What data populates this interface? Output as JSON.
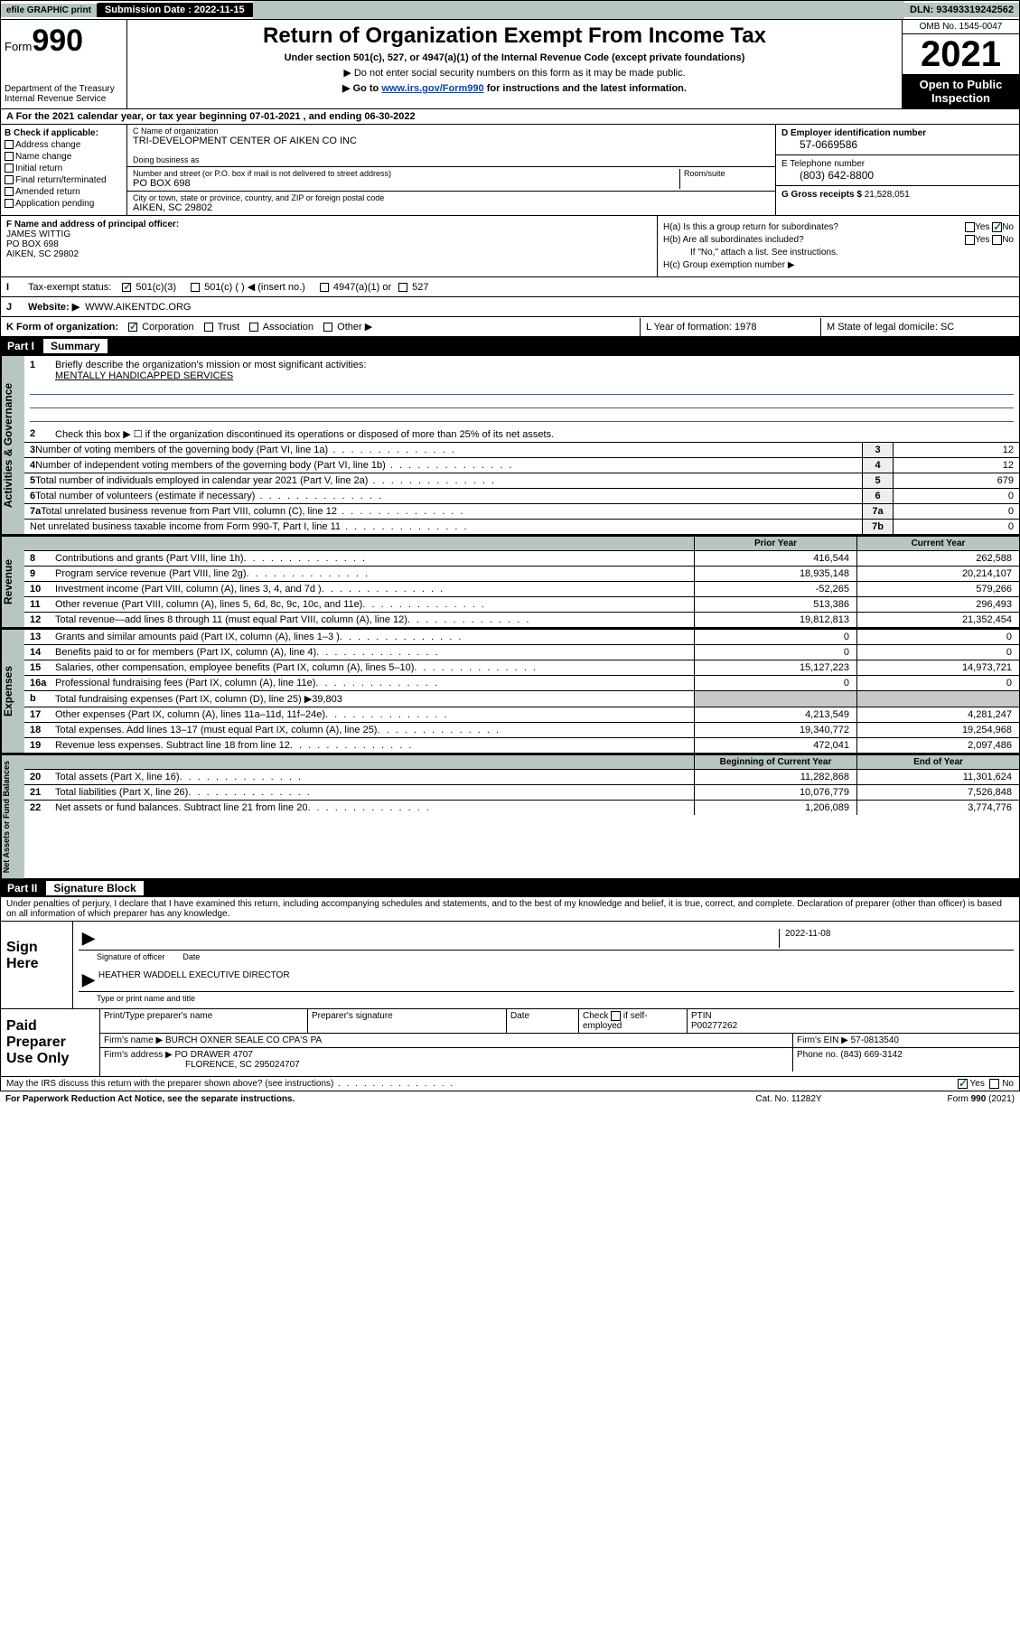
{
  "topbar": {
    "efile": "efile GRAPHIC print",
    "submission": "Submission Date : 2022-11-15",
    "dln": "DLN: 93493319242562"
  },
  "header": {
    "form_word": "Form",
    "form_num": "990",
    "dept": "Department of the Treasury",
    "irs": "Internal Revenue Service",
    "title": "Return of Organization Exempt From Income Tax",
    "subtitle": "Under section 501(c), 527, or 4947(a)(1) of the Internal Revenue Code (except private foundations)",
    "note1": "▶ Do not enter social security numbers on this form as it may be made public.",
    "note2_pre": "▶ Go to ",
    "note2_link": "www.irs.gov/Form990",
    "note2_post": " for instructions and the latest information.",
    "omb": "OMB No. 1545-0047",
    "year": "2021",
    "open": "Open to Public Inspection"
  },
  "rowA": "A For the 2021 calendar year, or tax year beginning 07-01-2021   , and ending 06-30-2022",
  "sectionB": {
    "label": "B Check if applicable:",
    "opts": [
      "Address change",
      "Name change",
      "Initial return",
      "Final return/terminated",
      "Amended return",
      "Application pending"
    ],
    "c_label": "C Name of organization",
    "c_name": "TRI-DEVELOPMENT CENTER OF AIKEN CO INC",
    "dba_label": "Doing business as",
    "addr_label": "Number and street (or P.O. box if mail is not delivered to street address)",
    "room_label": "Room/suite",
    "addr": "PO BOX 698",
    "city_label": "City or town, state or province, country, and ZIP or foreign postal code",
    "city": "AIKEN, SC  29802",
    "d_label": "D Employer identification number",
    "d_val": "57-0669586",
    "e_label": "E Telephone number",
    "e_val": "(803) 642-8800",
    "g_label": "G Gross receipts $",
    "g_val": "21,528,051"
  },
  "sectionFH": {
    "f_label": "F Name and address of principal officer:",
    "f_name": "JAMES WITTIG",
    "f_addr1": "PO BOX 698",
    "f_addr2": "AIKEN, SC  29802",
    "ha": "H(a)  Is this a group return for subordinates?",
    "hb": "H(b)  Are all subordinates included?",
    "hb_note": "If \"No,\" attach a list. See instructions.",
    "hc": "H(c)  Group exemption number ▶",
    "yes": "Yes",
    "no": "No"
  },
  "rowI": {
    "label": "Tax-exempt status:",
    "o1": "501(c)(3)",
    "o2": "501(c) (  ) ◀ (insert no.)",
    "o3": "4947(a)(1) or",
    "o4": "527"
  },
  "rowJ": {
    "label": "Website: ▶",
    "val": "WWW.AIKENTDC.ORG"
  },
  "rowK": {
    "label": "K Form of organization:",
    "o1": "Corporation",
    "o2": "Trust",
    "o3": "Association",
    "o4": "Other ▶",
    "l": "L Year of formation: 1978",
    "m": "M State of legal domicile: SC"
  },
  "part1": {
    "num": "Part I",
    "title": "Summary"
  },
  "governance": {
    "tab": "Activities & Governance",
    "q1_label": "1",
    "q1_text": "Briefly describe the organization's mission or most significant activities:",
    "q1_val": "MENTALLY HANDICAPPED SERVICES",
    "q2_label": "2",
    "q2_text": "Check this box ▶ ☐  if the organization discontinued its operations or disposed of more than 25% of its net assets.",
    "rows": [
      {
        "n": "3",
        "t": "Number of voting members of the governing body (Part VI, line 1a)",
        "box": "3",
        "v": "12"
      },
      {
        "n": "4",
        "t": "Number of independent voting members of the governing body (Part VI, line 1b)",
        "box": "4",
        "v": "12"
      },
      {
        "n": "5",
        "t": "Total number of individuals employed in calendar year 2021 (Part V, line 2a)",
        "box": "5",
        "v": "679"
      },
      {
        "n": "6",
        "t": "Total number of volunteers (estimate if necessary)",
        "box": "6",
        "v": "0"
      },
      {
        "n": "7a",
        "t": "Total unrelated business revenue from Part VIII, column (C), line 12",
        "box": "7a",
        "v": "0"
      },
      {
        "n": "",
        "t": "Net unrelated business taxable income from Form 990-T, Part I, line 11",
        "box": "7b",
        "v": "0"
      }
    ]
  },
  "revenue": {
    "tab": "Revenue",
    "h1": "Prior Year",
    "h2": "Current Year",
    "rows": [
      {
        "n": "8",
        "t": "Contributions and grants (Part VIII, line 1h)",
        "c1": "416,544",
        "c2": "262,588"
      },
      {
        "n": "9",
        "t": "Program service revenue (Part VIII, line 2g)",
        "c1": "18,935,148",
        "c2": "20,214,107"
      },
      {
        "n": "10",
        "t": "Investment income (Part VIII, column (A), lines 3, 4, and 7d )",
        "c1": "-52,265",
        "c2": "579,266"
      },
      {
        "n": "11",
        "t": "Other revenue (Part VIII, column (A), lines 5, 6d, 8c, 9c, 10c, and 11e)",
        "c1": "513,386",
        "c2": "296,493"
      },
      {
        "n": "12",
        "t": "Total revenue—add lines 8 through 11 (must equal Part VIII, column (A), line 12)",
        "c1": "19,812,813",
        "c2": "21,352,454"
      }
    ]
  },
  "expenses": {
    "tab": "Expenses",
    "rows": [
      {
        "n": "13",
        "t": "Grants and similar amounts paid (Part IX, column (A), lines 1–3 )",
        "c1": "0",
        "c2": "0"
      },
      {
        "n": "14",
        "t": "Benefits paid to or for members (Part IX, column (A), line 4)",
        "c1": "0",
        "c2": "0"
      },
      {
        "n": "15",
        "t": "Salaries, other compensation, employee benefits (Part IX, column (A), lines 5–10)",
        "c1": "15,127,223",
        "c2": "14,973,721"
      },
      {
        "n": "16a",
        "t": "Professional fundraising fees (Part IX, column (A), line 11e)",
        "c1": "0",
        "c2": "0"
      },
      {
        "n": "b",
        "t": "Total fundraising expenses (Part IX, column (D), line 25) ▶39,803",
        "c1": "",
        "c2": "",
        "grey": true
      },
      {
        "n": "17",
        "t": "Other expenses (Part IX, column (A), lines 11a–11d, 11f–24e)",
        "c1": "4,213,549",
        "c2": "4,281,247"
      },
      {
        "n": "18",
        "t": "Total expenses. Add lines 13–17 (must equal Part IX, column (A), line 25)",
        "c1": "19,340,772",
        "c2": "19,254,968"
      },
      {
        "n": "19",
        "t": "Revenue less expenses. Subtract line 18 from line 12",
        "c1": "472,041",
        "c2": "2,097,486"
      }
    ]
  },
  "netassets": {
    "tab": "Net Assets or Fund Balances",
    "h1": "Beginning of Current Year",
    "h2": "End of Year",
    "rows": [
      {
        "n": "20",
        "t": "Total assets (Part X, line 16)",
        "c1": "11,282,868",
        "c2": "11,301,624"
      },
      {
        "n": "21",
        "t": "Total liabilities (Part X, line 26)",
        "c1": "10,076,779",
        "c2": "7,526,848"
      },
      {
        "n": "22",
        "t": "Net assets or fund balances. Subtract line 21 from line 20",
        "c1": "1,206,089",
        "c2": "3,774,776"
      }
    ]
  },
  "part2": {
    "num": "Part II",
    "title": "Signature Block"
  },
  "penalties": "Under penalties of perjury, I declare that I have examined this return, including accompanying schedules and statements, and to the best of my knowledge and belief, it is true, correct, and complete. Declaration of preparer (other than officer) is based on all information of which preparer has any knowledge.",
  "sign": {
    "label": "Sign Here",
    "sig_of_officer": "Signature of officer",
    "date_label": "Date",
    "date_val": "2022-11-08",
    "name": "HEATHER WADDELL  EXECUTIVE DIRECTOR",
    "name_label": "Type or print name and title"
  },
  "preparer": {
    "label": "Paid Preparer Use Only",
    "h1": "Print/Type preparer's name",
    "h2": "Preparer's signature",
    "h3": "Date",
    "h4_a": "Check",
    "h4_b": "if self-employed",
    "h5": "PTIN",
    "ptin": "P00277262",
    "firm_name_l": "Firm's name    ▶",
    "firm_name": "BURCH OXNER SEALE CO CPA'S PA",
    "firm_ein_l": "Firm's EIN ▶",
    "firm_ein": "57-0813540",
    "firm_addr_l": "Firm's address ▶",
    "firm_addr1": "PO DRAWER 4707",
    "firm_addr2": "FLORENCE, SC  295024707",
    "phone_l": "Phone no.",
    "phone": "(843) 669-3142"
  },
  "footer": {
    "q": "May the IRS discuss this return with the preparer shown above? (see instructions)",
    "yes": "Yes",
    "no": "No"
  },
  "bottom": {
    "l": "For Paperwork Reduction Act Notice, see the separate instructions.",
    "m": "Cat. No. 11282Y",
    "r": "Form 990 (2021)"
  }
}
